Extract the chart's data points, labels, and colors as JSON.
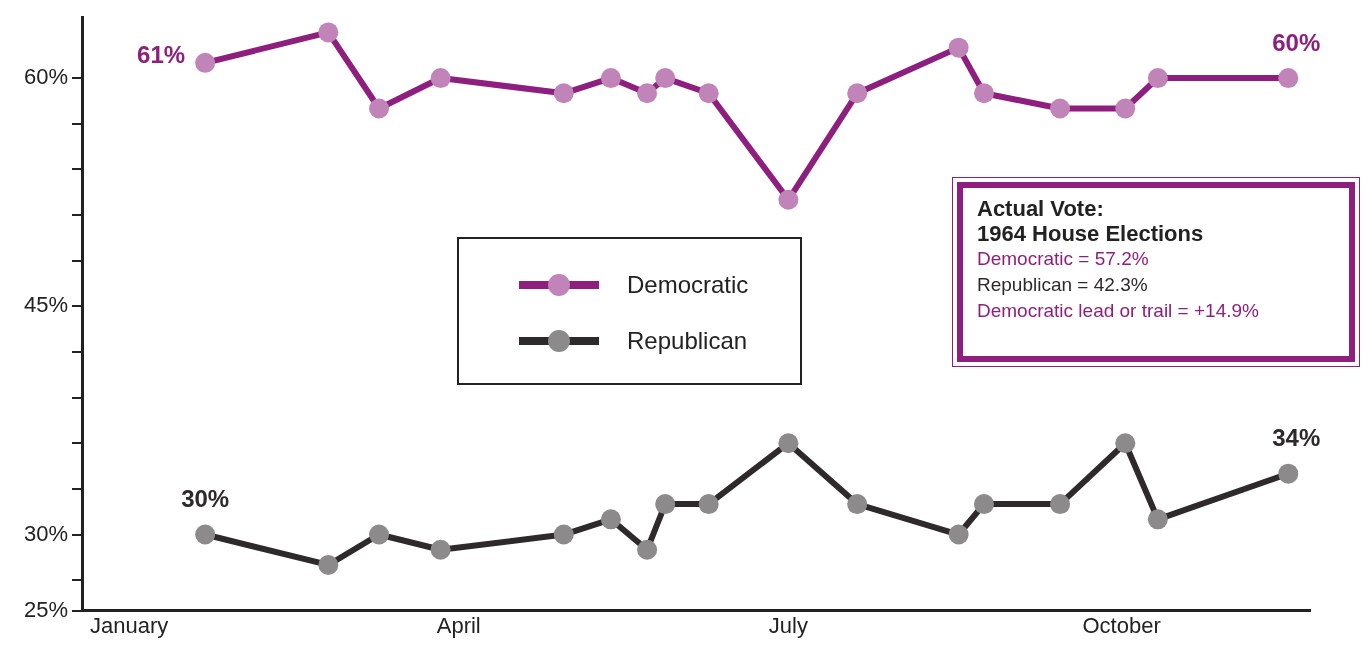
{
  "chart_data": {
    "type": "line",
    "x": [
      "--02-05",
      "--03-10",
      "--03-24",
      "--04-10",
      "--05-14",
      "--05-27",
      "--06-06",
      "--06-11",
      "--06-23",
      "--07-15",
      "--08-03",
      "--08-31",
      "--09-07",
      "--09-28",
      "--10-16",
      "--10-25",
      "--11-30"
    ],
    "series": [
      {
        "name": "Democratic",
        "color": "#8e1f7f",
        "values": [
          61,
          63,
          58,
          60,
          59,
          60,
          59,
          60,
          59,
          52,
          59,
          62,
          59,
          58,
          58,
          60,
          60
        ]
      },
      {
        "name": "Republican",
        "color": "#2e2a2b",
        "values": [
          30,
          28,
          30,
          29,
          30,
          31,
          29,
          32,
          32,
          36,
          32,
          30,
          32,
          32,
          36,
          31,
          34
        ]
      }
    ],
    "xlim": [
      "--01-02",
      "--12-06"
    ],
    "xticks": [
      {
        "value": "--01-15",
        "label": "January"
      },
      {
        "value": "--04-15",
        "label": "April"
      },
      {
        "value": "--07-15",
        "label": "July"
      },
      {
        "value": "--10-15",
        "label": "October"
      }
    ],
    "ylim": [
      25,
      64
    ],
    "yticks": [
      {
        "value": 25,
        "label": "25%"
      },
      {
        "value": 27,
        "label": null
      },
      {
        "value": 30,
        "label": "30%"
      },
      {
        "value": 33,
        "label": null
      },
      {
        "value": 36,
        "label": null
      },
      {
        "value": 39,
        "label": null
      },
      {
        "value": 42,
        "label": null
      },
      {
        "value": 45,
        "label": "45%"
      },
      {
        "value": 48,
        "label": null
      },
      {
        "value": 51,
        "label": null
      },
      {
        "value": 54,
        "label": null
      },
      {
        "value": 57,
        "label": null
      },
      {
        "value": 60,
        "label": "60%"
      }
    ],
    "grid": false,
    "legend": "center",
    "marker": "circle",
    "line_style": "solid",
    "annotations": [
      {
        "text": "61%",
        "x": "--02-05",
        "y": 61
      },
      {
        "text": "60%",
        "x": "--11-30",
        "y": 60
      },
      {
        "text": "30%",
        "x": "--02-05",
        "y": 30
      },
      {
        "text": "34%",
        "x": "--11-30",
        "y": 34
      },
      "Actual Vote:",
      "1964 House Elections",
      "Democratic = 57.2%",
      "Republican = 42.3%",
      "Democratic lead or trail = +14.9%"
    ]
  }
}
